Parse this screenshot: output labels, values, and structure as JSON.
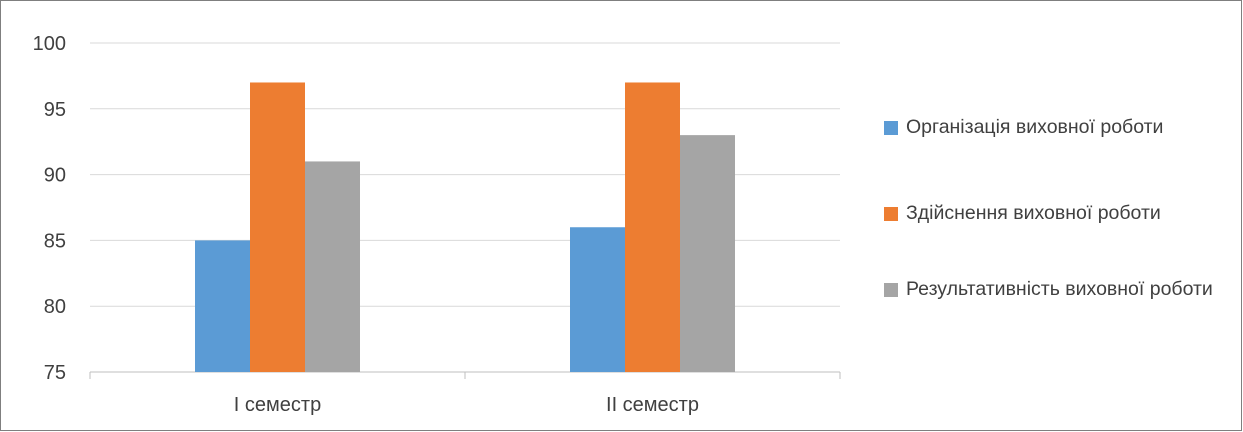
{
  "chart_data": {
    "type": "bar",
    "title": "",
    "xlabel": "",
    "ylabel": "",
    "categories": [
      "І семестр",
      "ІІ семестр"
    ],
    "series": [
      {
        "name": "Організація виховної роботи",
        "color": "#5b9bd5",
        "values": [
          85,
          86
        ]
      },
      {
        "name": "Здійснення виховної роботи",
        "color": "#ed7d31",
        "values": [
          97,
          97
        ]
      },
      {
        "name": "Результативність виховної роботи",
        "color": "#a5a5a5",
        "values": [
          91,
          93
        ]
      }
    ],
    "ylim": [
      75,
      100
    ],
    "yticks": [
      "75",
      "80",
      "85",
      "90",
      "95",
      "100"
    ],
    "grid": true,
    "legend_position": "right"
  }
}
